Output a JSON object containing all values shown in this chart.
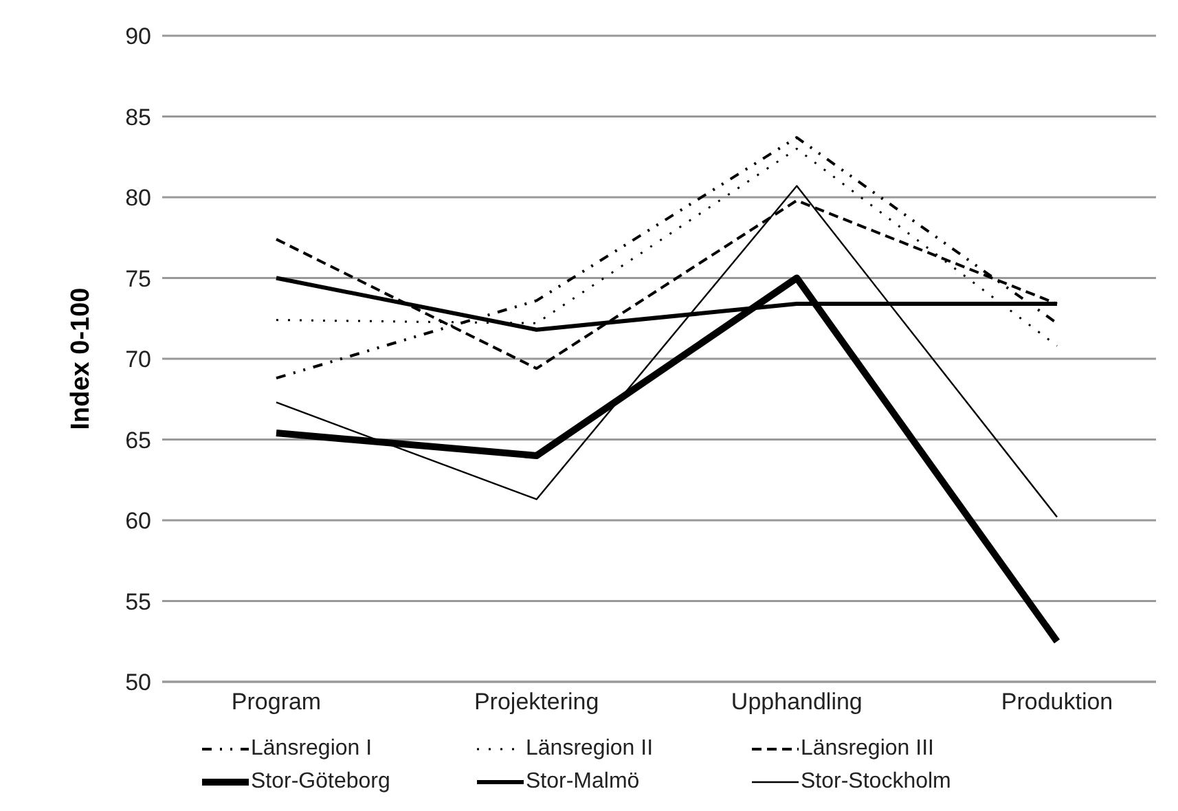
{
  "chart_data": {
    "type": "line",
    "ylabel": "Index 0-100",
    "categories": [
      "Program",
      "Projektering",
      "Upphandling",
      "Produktion"
    ],
    "series": [
      {
        "name": "Länsregion I",
        "color": "#000000",
        "line_style": "dashdot",
        "values": [
          68.8,
          73.6,
          83.7,
          72.2
        ]
      },
      {
        "name": "Länsregion II",
        "color": "#000000",
        "line_style": "dotted",
        "values": [
          72.4,
          72.2,
          83.0,
          70.8
        ]
      },
      {
        "name": "Länsregion III",
        "color": "#000000",
        "line_style": "dashed",
        "values": [
          77.4,
          69.4,
          79.8,
          73.4
        ]
      },
      {
        "name": "Stor-Göteborg",
        "color": "#000000",
        "line_style": "solid",
        "values": [
          65.4,
          64.0,
          75.0,
          52.5
        ]
      },
      {
        "name": "Stor-Malmö",
        "color": "#000000",
        "line_style": "solid",
        "values": [
          75.0,
          71.8,
          73.4,
          73.4
        ]
      },
      {
        "name": "Stor-Stockholm",
        "color": "#000000",
        "line_style": "solid",
        "values": [
          67.3,
          61.3,
          80.7,
          60.2
        ]
      }
    ],
    "ylim": [
      50,
      90
    ],
    "yticks": [
      50,
      55,
      60,
      65,
      70,
      75,
      80,
      85,
      90
    ],
    "grid": "y",
    "legend": "bottom",
    "marker": "none"
  }
}
